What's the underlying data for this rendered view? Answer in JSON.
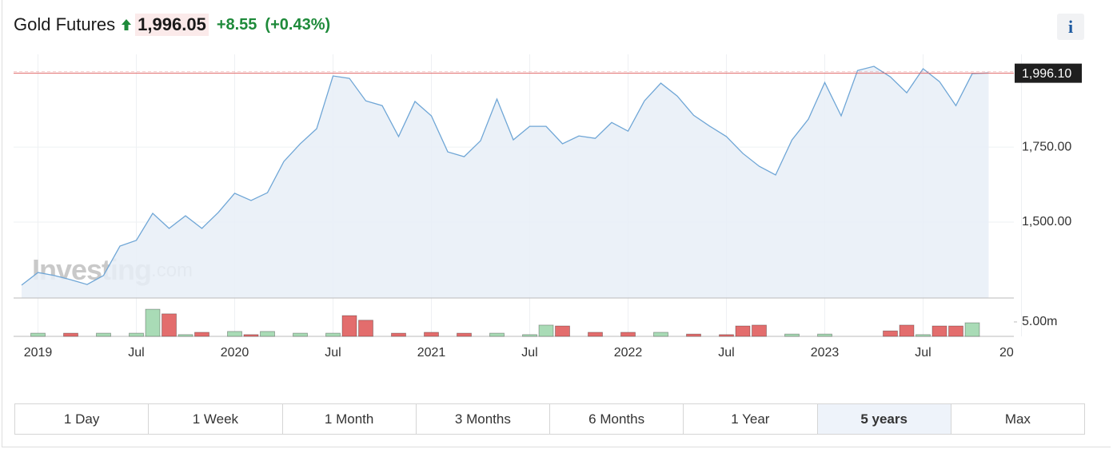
{
  "header": {
    "title": "Gold Futures",
    "price": "1,996.05",
    "change": "+8.55",
    "change_pct": "(+0.43%)",
    "info": "i"
  },
  "chart_data": {
    "type": "line",
    "watermark": [
      "Investing",
      ".com"
    ],
    "categories": [
      null,
      "2019",
      null,
      null,
      null,
      null,
      null,
      "Jul",
      null,
      null,
      null,
      null,
      null,
      "2020",
      null,
      null,
      null,
      null,
      null,
      "Jul",
      null,
      null,
      null,
      null,
      null,
      "2021",
      null,
      null,
      null,
      null,
      null,
      "Jul",
      null,
      null,
      null,
      null,
      null,
      "2022",
      null,
      null,
      null,
      null,
      null,
      "Jul",
      null,
      null,
      null,
      null,
      null,
      "2023",
      null,
      null,
      null,
      null,
      null,
      "Jul",
      null,
      null,
      null,
      null,
      null,
      "20"
    ],
    "values": [
      1290,
      1332,
      1322,
      1308,
      1292,
      1322,
      1420,
      1439,
      1529,
      1479,
      1521,
      1479,
      1532,
      1596,
      1572,
      1598,
      1702,
      1761,
      1811,
      1987,
      1979,
      1904,
      1888,
      1785,
      1902,
      1854,
      1734,
      1718,
      1771,
      1910,
      1774,
      1819,
      1819,
      1761,
      1787,
      1779,
      1832,
      1803,
      1904,
      1963,
      1920,
      1856,
      1819,
      1785,
      1729,
      1686,
      1657,
      1774,
      1843,
      1965,
      1854,
      2005,
      2019,
      1984,
      1931,
      2011,
      1968,
      1888,
      1995,
      1997,
      null,
      null
    ],
    "color": "#6fa6d6",
    "fill": "#e8eef7",
    "ylim": [
      1247,
      2059
    ],
    "yticks": [
      {
        "value": 1500,
        "label": "1,500.00"
      },
      {
        "value": 1750,
        "label": "1,750.00"
      }
    ],
    "price_marker": {
      "value": 1996.1,
      "label": "1,996.10",
      "color": "#e06666"
    },
    "grid": true,
    "volume": {
      "values": [
        null,
        1.1,
        null,
        1.1,
        null,
        1.1,
        null,
        1.1,
        9.4,
        7.8,
        0.6,
        1.4,
        null,
        1.7,
        0.6,
        1.7,
        null,
        1.1,
        null,
        1.1,
        7.2,
        5.6,
        null,
        1.1,
        null,
        1.4,
        null,
        1.1,
        null,
        1.1,
        null,
        0.6,
        3.9,
        3.6,
        null,
        1.4,
        null,
        1.4,
        null,
        1.4,
        null,
        0.8,
        null,
        0.6,
        3.6,
        3.9,
        null,
        0.8,
        null,
        0.8,
        null,
        null,
        null,
        1.9,
        3.9,
        0.6,
        3.6,
        3.6,
        4.7,
        null,
        null,
        null
      ],
      "colors": [
        null,
        "#a9dbb6",
        null,
        "#e36d6d",
        null,
        "#a9dbb6",
        null,
        "#a9dbb6",
        "#a9dbb6",
        "#e36d6d",
        "#a9dbb6",
        "#e36d6d",
        null,
        "#a9dbb6",
        "#e36d6d",
        "#a9dbb6",
        null,
        "#a9dbb6",
        null,
        "#a9dbb6",
        "#e36d6d",
        "#e36d6d",
        null,
        "#e36d6d",
        null,
        "#e36d6d",
        null,
        "#e36d6d",
        null,
        "#a9dbb6",
        null,
        "#a9dbb6",
        "#a9dbb6",
        "#e36d6d",
        null,
        "#e36d6d",
        null,
        "#e36d6d",
        null,
        "#a9dbb6",
        null,
        "#e36d6d",
        null,
        "#e36d6d",
        "#e36d6d",
        "#e36d6d",
        null,
        "#a9dbb6",
        null,
        "#a9dbb6",
        null,
        null,
        null,
        "#e36d6d",
        "#e36d6d",
        "#a9dbb6",
        "#e36d6d",
        "#e36d6d",
        "#a9dbb6",
        null,
        null,
        null
      ],
      "ylim": [
        0,
        13.3
      ],
      "yticks": [
        {
          "value": 5,
          "label": "5.00m"
        }
      ]
    }
  },
  "range_buttons": {
    "items": [
      "1 Day",
      "1 Week",
      "1 Month",
      "3 Months",
      "6 Months",
      "1 Year",
      "5 years",
      "Max"
    ],
    "active": 6
  }
}
